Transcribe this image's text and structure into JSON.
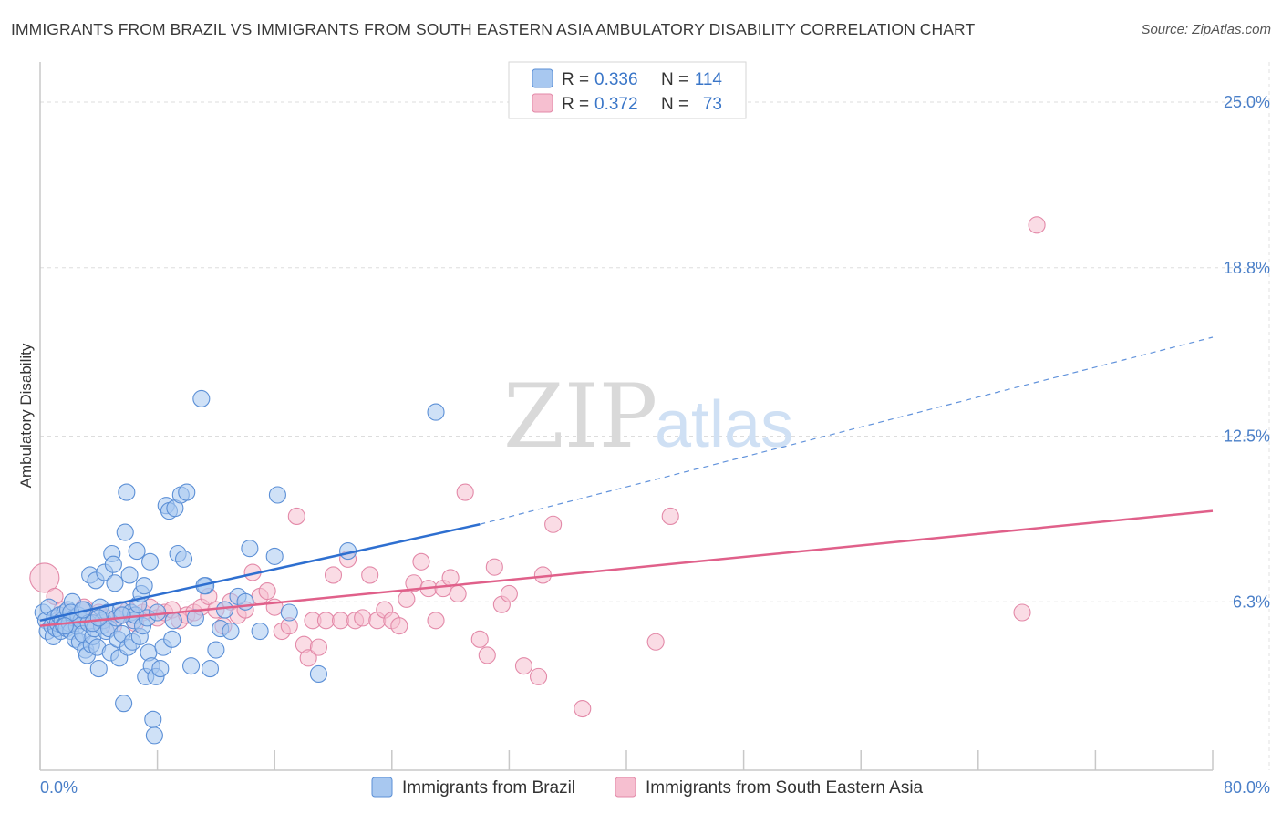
{
  "header": {
    "title": "IMMIGRANTS FROM BRAZIL VS IMMIGRANTS FROM SOUTH EASTERN ASIA AMBULATORY DISABILITY CORRELATION CHART",
    "source": "Source: ZipAtlas.com"
  },
  "watermark": {
    "zip": "ZIP",
    "atlas": "atlas"
  },
  "colors": {
    "brazil_fill": "#a8c8f0",
    "brazil_stroke": "#5b8fd6",
    "brazil_line": "#2e6fd0",
    "sea_fill": "#f6bfd0",
    "sea_stroke": "#e389a8",
    "sea_line": "#e0608a",
    "tick_label": "#4a7fc8",
    "grid": "#dddddd"
  },
  "legend": {
    "rows": [
      {
        "r_label": "R =",
        "r_value": "0.336",
        "n_label": "N =",
        "n_value": "114"
      },
      {
        "r_label": "R =",
        "r_value": "0.372",
        "n_label": "N =",
        "n_value": "73"
      }
    ]
  },
  "chart_data": {
    "type": "scatter",
    "title": "IMMIGRANTS FROM BRAZIL VS IMMIGRANTS FROM SOUTH EASTERN ASIA AMBULATORY DISABILITY CORRELATION CHART",
    "xlabel": "",
    "ylabel": "Ambulatory Disability",
    "xlim": [
      0,
      80
    ],
    "ylim": [
      0,
      26.5
    ],
    "x_tick_labels": [
      {
        "value": 0,
        "label": "0.0%"
      },
      {
        "value": 80,
        "label": "80.0%"
      }
    ],
    "y_tick_labels": [
      {
        "value": 6.3,
        "label": "6.3%"
      },
      {
        "value": 12.5,
        "label": "12.5%"
      },
      {
        "value": 18.8,
        "label": "18.8%"
      },
      {
        "value": 25.0,
        "label": "25.0%"
      }
    ],
    "grid": true,
    "legend_position": "top-center",
    "series": [
      {
        "name": "Immigrants from Brazil",
        "color": "#a8c8f0",
        "r": 0.336,
        "n": 114,
        "trend": {
          "x0": 0,
          "y0": 5.6,
          "x1": 30,
          "y1": 9.2,
          "dash_to_x": 80,
          "dash_to_y": 16.2
        },
        "points": [
          [
            0.2,
            5.9
          ],
          [
            0.4,
            5.6
          ],
          [
            0.5,
            5.2
          ],
          [
            0.6,
            6.1
          ],
          [
            0.8,
            5.4
          ],
          [
            0.9,
            5.0
          ],
          [
            1.0,
            5.7
          ],
          [
            1.1,
            5.3
          ],
          [
            1.2,
            5.5
          ],
          [
            1.3,
            5.8
          ],
          [
            1.4,
            5.2
          ],
          [
            1.5,
            5.6
          ],
          [
            1.6,
            5.4
          ],
          [
            1.7,
            5.9
          ],
          [
            1.8,
            5.3
          ],
          [
            1.9,
            6.0
          ],
          [
            2.0,
            5.5
          ],
          [
            2.1,
            5.2
          ],
          [
            2.2,
            6.3
          ],
          [
            2.3,
            5.7
          ],
          [
            2.4,
            4.9
          ],
          [
            2.5,
            5.4
          ],
          [
            2.6,
            5.8
          ],
          [
            2.7,
            4.8
          ],
          [
            2.8,
            5.6
          ],
          [
            2.9,
            5.1
          ],
          [
            3.0,
            6.0
          ],
          [
            3.1,
            4.5
          ],
          [
            3.2,
            4.3
          ],
          [
            3.3,
            5.5
          ],
          [
            3.4,
            7.3
          ],
          [
            3.5,
            4.7
          ],
          [
            3.6,
            5.0
          ],
          [
            3.7,
            5.3
          ],
          [
            3.8,
            7.1
          ],
          [
            3.9,
            4.6
          ],
          [
            4.0,
            3.8
          ],
          [
            4.1,
            6.1
          ],
          [
            4.2,
            5.4
          ],
          [
            4.3,
            5.6
          ],
          [
            4.4,
            7.4
          ],
          [
            4.5,
            5.2
          ],
          [
            4.6,
            5.9
          ],
          [
            4.7,
            5.3
          ],
          [
            4.8,
            4.4
          ],
          [
            4.9,
            8.1
          ],
          [
            5.0,
            7.7
          ],
          [
            5.1,
            7.0
          ],
          [
            5.2,
            5.7
          ],
          [
            5.3,
            4.9
          ],
          [
            5.4,
            4.2
          ],
          [
            5.5,
            6.0
          ],
          [
            5.6,
            5.1
          ],
          [
            5.7,
            2.5
          ],
          [
            5.8,
            8.9
          ],
          [
            5.9,
            10.4
          ],
          [
            6.0,
            4.6
          ],
          [
            6.1,
            7.3
          ],
          [
            6.2,
            5.9
          ],
          [
            6.3,
            4.8
          ],
          [
            6.4,
            5.6
          ],
          [
            6.5,
            5.8
          ],
          [
            6.6,
            8.2
          ],
          [
            6.7,
            6.2
          ],
          [
            6.8,
            5.0
          ],
          [
            6.9,
            6.6
          ],
          [
            7.0,
            5.4
          ],
          [
            7.1,
            6.9
          ],
          [
            7.2,
            3.5
          ],
          [
            7.3,
            5.7
          ],
          [
            7.4,
            4.4
          ],
          [
            7.5,
            7.8
          ],
          [
            7.6,
            3.9
          ],
          [
            7.7,
            1.9
          ],
          [
            7.8,
            1.3
          ],
          [
            7.9,
            3.5
          ],
          [
            8.0,
            5.9
          ],
          [
            8.2,
            3.8
          ],
          [
            8.4,
            4.6
          ],
          [
            8.6,
            9.9
          ],
          [
            8.8,
            9.7
          ],
          [
            9.0,
            4.9
          ],
          [
            9.2,
            9.8
          ],
          [
            9.4,
            8.1
          ],
          [
            9.6,
            10.3
          ],
          [
            9.8,
            7.9
          ],
          [
            10.0,
            10.4
          ],
          [
            10.3,
            3.9
          ],
          [
            10.6,
            5.7
          ],
          [
            11.0,
            13.9
          ],
          [
            11.3,
            6.9
          ],
          [
            11.6,
            3.8
          ],
          [
            12.0,
            4.5
          ],
          [
            12.3,
            5.3
          ],
          [
            12.6,
            6.0
          ],
          [
            13.0,
            5.2
          ],
          [
            13.5,
            6.5
          ],
          [
            14.0,
            6.3
          ],
          [
            14.3,
            8.3
          ],
          [
            15.0,
            5.2
          ],
          [
            16.0,
            8.0
          ],
          [
            16.2,
            10.3
          ],
          [
            17.0,
            5.9
          ],
          [
            19.0,
            3.6
          ],
          [
            21.0,
            8.2
          ],
          [
            27.0,
            13.4
          ],
          [
            11.2,
            6.9
          ],
          [
            9.1,
            5.6
          ],
          [
            5.6,
            5.8
          ],
          [
            3.6,
            5.5
          ],
          [
            2.1,
            5.9
          ],
          [
            1.7,
            5.4
          ],
          [
            2.9,
            6.0
          ],
          [
            4.0,
            5.7
          ]
        ]
      },
      {
        "name": "Immigrants from South Eastern Asia",
        "color": "#f6bfd0",
        "r": 0.372,
        "n": 73,
        "trend": {
          "x0": 0,
          "y0": 5.4,
          "x1": 80,
          "y1": 9.7
        },
        "points": [
          [
            0.3,
            7.2
          ],
          [
            1.0,
            6.5
          ],
          [
            1.5,
            6.0
          ],
          [
            2.0,
            5.8
          ],
          [
            2.5,
            5.6
          ],
          [
            3.0,
            6.1
          ],
          [
            3.5,
            5.5
          ],
          [
            4.0,
            5.9
          ],
          [
            4.5,
            5.7
          ],
          [
            5.0,
            5.4
          ],
          [
            5.5,
            5.8
          ],
          [
            6.0,
            6.0
          ],
          [
            6.5,
            5.5
          ],
          [
            7.0,
            5.9
          ],
          [
            7.5,
            6.1
          ],
          [
            8.0,
            5.7
          ],
          [
            8.5,
            5.9
          ],
          [
            9.0,
            6.0
          ],
          [
            9.5,
            5.6
          ],
          [
            10.0,
            5.8
          ],
          [
            10.5,
            5.9
          ],
          [
            11.0,
            6.1
          ],
          [
            11.5,
            6.5
          ],
          [
            12.0,
            6.0
          ],
          [
            12.5,
            5.4
          ],
          [
            13.0,
            6.3
          ],
          [
            13.5,
            5.8
          ],
          [
            14.0,
            6.0
          ],
          [
            14.5,
            7.4
          ],
          [
            15.0,
            6.5
          ],
          [
            15.5,
            6.7
          ],
          [
            16.0,
            6.1
          ],
          [
            16.5,
            5.2
          ],
          [
            17.0,
            5.4
          ],
          [
            17.5,
            9.5
          ],
          [
            18.0,
            4.7
          ],
          [
            18.3,
            4.2
          ],
          [
            18.6,
            5.6
          ],
          [
            19.0,
            4.6
          ],
          [
            19.5,
            5.6
          ],
          [
            20.0,
            7.3
          ],
          [
            20.5,
            5.6
          ],
          [
            21.0,
            7.9
          ],
          [
            21.5,
            5.6
          ],
          [
            22.0,
            5.7
          ],
          [
            22.5,
            7.3
          ],
          [
            23.0,
            5.6
          ],
          [
            23.5,
            6.0
          ],
          [
            24.0,
            5.6
          ],
          [
            24.5,
            5.4
          ],
          [
            25.0,
            6.4
          ],
          [
            25.5,
            7.0
          ],
          [
            26.0,
            7.8
          ],
          [
            26.5,
            6.8
          ],
          [
            27.0,
            5.6
          ],
          [
            27.5,
            6.8
          ],
          [
            28.0,
            7.2
          ],
          [
            28.5,
            6.6
          ],
          [
            29.0,
            10.4
          ],
          [
            30.0,
            4.9
          ],
          [
            30.5,
            4.3
          ],
          [
            31.0,
            7.6
          ],
          [
            31.5,
            6.2
          ],
          [
            32.0,
            6.6
          ],
          [
            33.0,
            3.9
          ],
          [
            34.0,
            3.5
          ],
          [
            34.3,
            7.3
          ],
          [
            35.0,
            9.2
          ],
          [
            37.0,
            2.3
          ],
          [
            42.0,
            4.8
          ],
          [
            43.0,
            9.5
          ],
          [
            67.0,
            5.9
          ],
          [
            68.0,
            20.4
          ]
        ]
      }
    ]
  },
  "bottom_legend": [
    {
      "label": "Immigrants from Brazil"
    },
    {
      "label": "Immigrants from South Eastern Asia"
    }
  ]
}
